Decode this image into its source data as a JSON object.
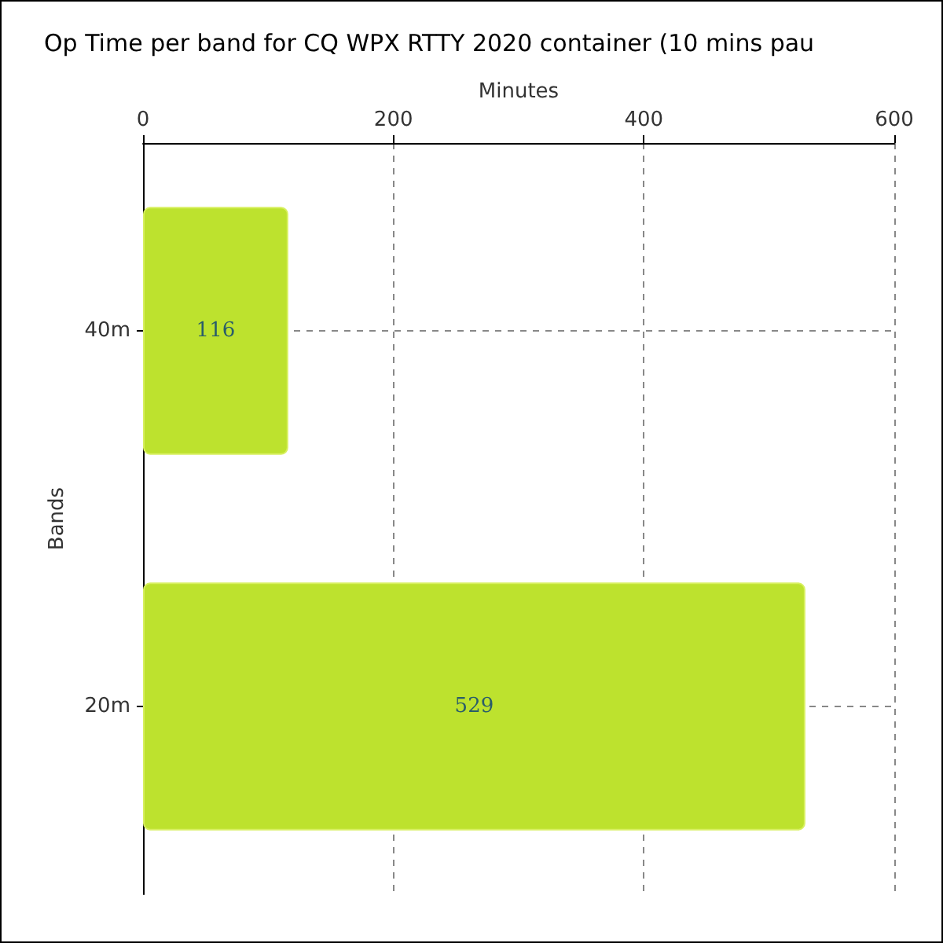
{
  "chart_data": {
    "type": "bar",
    "orientation": "horizontal",
    "title": "Op Time per band for CQ WPX RTTY 2020 container (10 mins pau",
    "xlabel": "Minutes",
    "ylabel": "Bands",
    "categories": [
      "40m",
      "20m"
    ],
    "values": [
      116,
      529
    ],
    "color": "#bde22e",
    "xlim": [
      0,
      600
    ],
    "xticks": [
      0,
      200,
      400,
      600
    ],
    "grid": true,
    "data_labels": true
  }
}
